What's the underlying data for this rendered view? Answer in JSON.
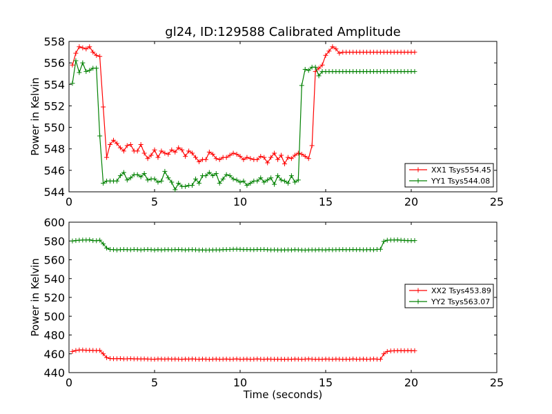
{
  "title": "gl24, ID:129588 Calibrated Amplitude",
  "chart_data": [
    {
      "type": "line",
      "xlabel": "",
      "ylabel": "Power in Kelvin",
      "xlim": [
        0,
        25
      ],
      "ylim": [
        544,
        558
      ],
      "xticks": [
        0,
        5,
        10,
        15,
        20,
        25
      ],
      "yticks": [
        544,
        546,
        548,
        550,
        552,
        554,
        556,
        558
      ],
      "legend": "lower-right",
      "grid": false,
      "x": [
        0.2,
        0.4,
        0.6,
        0.8,
        1.0,
        1.2,
        1.4,
        1.6,
        1.8,
        2.0,
        2.2,
        2.4,
        2.6,
        2.8,
        3.0,
        3.2,
        3.4,
        3.6,
        3.8,
        4.0,
        4.2,
        4.4,
        4.6,
        4.8,
        5.0,
        5.2,
        5.4,
        5.6,
        5.8,
        6.0,
        6.2,
        6.4,
        6.6,
        6.8,
        7.0,
        7.2,
        7.4,
        7.6,
        7.8,
        8.0,
        8.2,
        8.4,
        8.6,
        8.8,
        9.0,
        9.2,
        9.4,
        9.6,
        9.8,
        10.0,
        10.2,
        10.4,
        10.6,
        10.8,
        11.0,
        11.2,
        11.4,
        11.6,
        11.8,
        12.0,
        12.2,
        12.4,
        12.6,
        12.8,
        13.0,
        13.2,
        13.4,
        13.6,
        13.8,
        14.0,
        14.2,
        14.4,
        14.6,
        14.8,
        15.0,
        15.2,
        15.4,
        15.6,
        15.8,
        16.0,
        16.2,
        16.4,
        16.6,
        16.8,
        17.0,
        17.2,
        17.4,
        17.6,
        17.8,
        18.0,
        18.2,
        18.4,
        18.6,
        18.8,
        19.0,
        19.2,
        19.4,
        19.6,
        19.8,
        20.0,
        20.2
      ],
      "series": [
        {
          "name": "XX1 Tsys554.45",
          "color": "#ff0000",
          "values": [
            555.8,
            556.9,
            557.5,
            557.4,
            557.3,
            557.5,
            557.0,
            556.7,
            556.6,
            551.9,
            547.2,
            548.4,
            548.8,
            548.5,
            548.1,
            547.8,
            548.3,
            548.4,
            547.8,
            547.8,
            548.4,
            547.6,
            547.1,
            547.4,
            547.9,
            547.2,
            547.8,
            547.6,
            547.5,
            547.9,
            547.7,
            548.1,
            547.9,
            547.3,
            547.8,
            547.6,
            547.2,
            546.8,
            547.0,
            547.0,
            547.7,
            547.5,
            547.1,
            547.0,
            547.2,
            547.2,
            547.4,
            547.6,
            547.5,
            547.3,
            547.0,
            547.2,
            547.1,
            547.0,
            547.0,
            547.3,
            547.2,
            546.7,
            547.2,
            547.6,
            547.0,
            547.4,
            546.6,
            547.2,
            547.1,
            547.4,
            547.6,
            547.5,
            547.3,
            547.1,
            548.3,
            555.2,
            555.5,
            555.8,
            556.7,
            557.1,
            557.5,
            557.3,
            556.9,
            557.0,
            557.0,
            557.0,
            557.0,
            557.0,
            557.0,
            557.0,
            557.0,
            557.0,
            557.0,
            557.0,
            557.0,
            557.0,
            557.0,
            557.0,
            557.0,
            557.0,
            557.0,
            557.0,
            557.0,
            557.0,
            557.0
          ]
        },
        {
          "name": "YY1 Tsys544.08",
          "color": "#008000",
          "values": [
            554.1,
            556.2,
            555.1,
            556.0,
            555.2,
            555.3,
            555.5,
            555.5,
            549.2,
            544.8,
            545.0,
            545.0,
            545.0,
            545.0,
            545.5,
            545.8,
            545.1,
            545.3,
            545.6,
            545.6,
            545.4,
            545.7,
            545.1,
            545.2,
            545.2,
            544.9,
            545.0,
            545.9,
            545.3,
            544.9,
            544.2,
            544.8,
            544.5,
            544.5,
            544.6,
            544.6,
            545.2,
            544.8,
            545.5,
            545.5,
            545.8,
            545.5,
            545.7,
            544.8,
            545.2,
            545.6,
            545.5,
            545.2,
            545.1,
            544.9,
            545.0,
            544.6,
            544.8,
            545.0,
            545.0,
            545.3,
            544.9,
            545.1,
            545.3,
            544.7,
            545.5,
            545.1,
            545.0,
            544.8,
            545.5,
            544.9,
            545.1,
            553.9,
            555.4,
            555.3,
            555.6,
            555.6,
            554.8,
            555.2,
            555.2,
            555.2,
            555.2,
            555.2,
            555.2,
            555.2,
            555.2,
            555.2,
            555.2,
            555.2,
            555.2,
            555.2,
            555.2,
            555.2,
            555.2,
            555.2,
            555.2,
            555.2,
            555.2,
            555.2,
            555.2,
            555.2,
            555.2,
            555.2,
            555.2,
            555.2,
            555.2
          ]
        }
      ]
    },
    {
      "type": "line",
      "xlabel": "Time (seconds)",
      "ylabel": "Power in Kelvin",
      "xlim": [
        0,
        25
      ],
      "ylim": [
        440,
        600
      ],
      "xticks": [
        0,
        5,
        10,
        15,
        20,
        25
      ],
      "yticks": [
        440,
        460,
        480,
        500,
        520,
        540,
        560,
        580,
        600
      ],
      "legend": "center-right",
      "grid": false,
      "x": [
        0.2,
        0.4,
        0.6,
        0.8,
        1.0,
        1.2,
        1.4,
        1.6,
        1.8,
        2.0,
        2.2,
        2.4,
        2.6,
        2.8,
        3.0,
        3.2,
        3.4,
        3.6,
        3.8,
        4.0,
        4.2,
        4.4,
        4.6,
        4.8,
        5.0,
        5.2,
        5.4,
        5.6,
        5.8,
        6.0,
        6.2,
        6.4,
        6.6,
        6.8,
        7.0,
        7.2,
        7.4,
        7.6,
        7.8,
        8.0,
        8.2,
        8.4,
        8.6,
        8.8,
        9.0,
        9.2,
        9.4,
        9.6,
        9.8,
        10.0,
        10.2,
        10.4,
        10.6,
        10.8,
        11.0,
        11.2,
        11.4,
        11.6,
        11.8,
        12.0,
        12.2,
        12.4,
        12.6,
        12.8,
        13.0,
        13.2,
        13.4,
        13.6,
        13.8,
        14.0,
        14.2,
        14.4,
        14.6,
        14.8,
        15.0,
        15.2,
        15.4,
        15.6,
        15.8,
        16.0,
        16.2,
        16.4,
        16.6,
        16.8,
        17.0,
        17.2,
        17.4,
        17.6,
        17.8,
        18.0,
        18.2,
        18.4,
        18.6,
        18.8,
        19.0,
        19.2,
        19.4,
        19.6,
        19.8,
        20.0,
        20.2
      ],
      "series": [
        {
          "name": "XX2 Tsys453.89",
          "color": "#ff0000",
          "values": [
            462.5,
            463.5,
            464.0,
            464.0,
            463.8,
            463.8,
            463.6,
            463.4,
            463.6,
            460.0,
            456.0,
            455.0,
            454.8,
            454.8,
            455.0,
            454.6,
            454.7,
            454.9,
            454.6,
            454.7,
            454.5,
            454.6,
            454.4,
            454.3,
            454.2,
            454.5,
            454.4,
            454.3,
            454.5,
            454.3,
            454.4,
            454.3,
            454.2,
            454.4,
            454.3,
            454.5,
            454.3,
            454.2,
            454.4,
            454.3,
            454.1,
            454.3,
            454.4,
            454.2,
            454.3,
            454.4,
            454.2,
            454.3,
            454.5,
            454.2,
            454.3,
            454.4,
            454.2,
            454.3,
            454.5,
            454.3,
            454.2,
            454.4,
            454.3,
            454.2,
            454.3,
            454.2,
            454.1,
            454.3,
            454.2,
            454.4,
            454.3,
            454.2,
            454.3,
            454.5,
            454.3,
            454.2,
            454.3,
            454.2,
            454.4,
            454.3,
            454.2,
            454.4,
            454.3,
            454.2,
            454.3,
            454.2,
            454.5,
            454.2,
            454.3,
            454.4,
            454.2,
            454.3,
            454.5,
            454.3,
            454.2,
            460.0,
            462.5,
            463.0,
            463.2,
            463.3,
            463.4,
            463.3,
            463.4,
            463.3,
            463.3
          ]
        },
        {
          "name": "YY2 Tsys563.07",
          "color": "#008000",
          "values": [
            580.0,
            580.5,
            580.8,
            581.0,
            581.0,
            581.2,
            580.5,
            580.3,
            580.8,
            577.0,
            572.5,
            571.0,
            570.8,
            570.5,
            570.8,
            571.0,
            570.8,
            570.6,
            571.0,
            570.8,
            570.5,
            570.8,
            571.0,
            570.7,
            570.4,
            570.8,
            570.5,
            570.7,
            570.8,
            570.6,
            570.8,
            570.9,
            570.7,
            570.5,
            570.7,
            570.8,
            570.6,
            570.4,
            570.5,
            570.3,
            570.4,
            570.5,
            570.6,
            570.5,
            570.8,
            570.9,
            571.0,
            571.2,
            571.3,
            571.1,
            570.9,
            571.0,
            570.8,
            570.7,
            571.0,
            570.9,
            571.0,
            570.7,
            570.5,
            570.6,
            570.5,
            570.4,
            570.5,
            570.6,
            570.5,
            570.7,
            570.6,
            570.4,
            570.3,
            570.5,
            570.6,
            570.5,
            570.7,
            570.6,
            570.5,
            570.8,
            570.6,
            570.7,
            570.8,
            570.9,
            570.7,
            570.8,
            570.9,
            570.7,
            570.8,
            570.6,
            570.7,
            570.8,
            570.6,
            571.0,
            571.2,
            579.5,
            580.8,
            581.0,
            581.0,
            581.2,
            580.8,
            580.6,
            580.4,
            580.4,
            580.5
          ]
        }
      ]
    }
  ]
}
